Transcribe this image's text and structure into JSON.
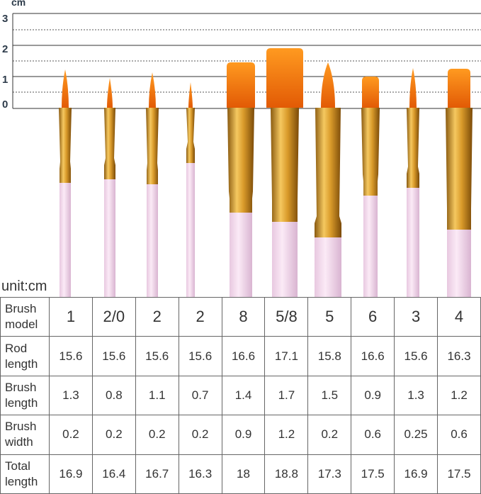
{
  "ruler": {
    "unit": "cm",
    "ticks": [
      "3",
      "2",
      "1",
      "0"
    ]
  },
  "unit_note": "unit:cm",
  "table": {
    "rows": [
      {
        "label": "Brush model",
        "cells": [
          "1",
          "2/0",
          "2",
          "2",
          "8",
          "5/8",
          "5",
          "6",
          "3",
          "4"
        ]
      },
      {
        "label": "Rod length",
        "cells": [
          "15.6",
          "15.6",
          "15.6",
          "15.6",
          "16.6",
          "17.1",
          "15.8",
          "16.6",
          "15.6",
          "16.3"
        ]
      },
      {
        "label": "Brush length",
        "cells": [
          "1.3",
          "0.8",
          "1.1",
          "0.7",
          "1.4",
          "1.7",
          "1.5",
          "0.9",
          "1.3",
          "1.2"
        ]
      },
      {
        "label": "Brush width",
        "cells": [
          "0.2",
          "0.2",
          "0.2",
          "0.2",
          "0.9",
          "1.2",
          "0.2",
          "0.6",
          "0.25",
          "0.6"
        ]
      },
      {
        "label": "Total length",
        "cells": [
          "16.9",
          "16.4",
          "16.7",
          "16.3",
          "18",
          "18.8",
          "17.3",
          "17.5",
          "16.9",
          "17.5"
        ]
      }
    ]
  }
}
